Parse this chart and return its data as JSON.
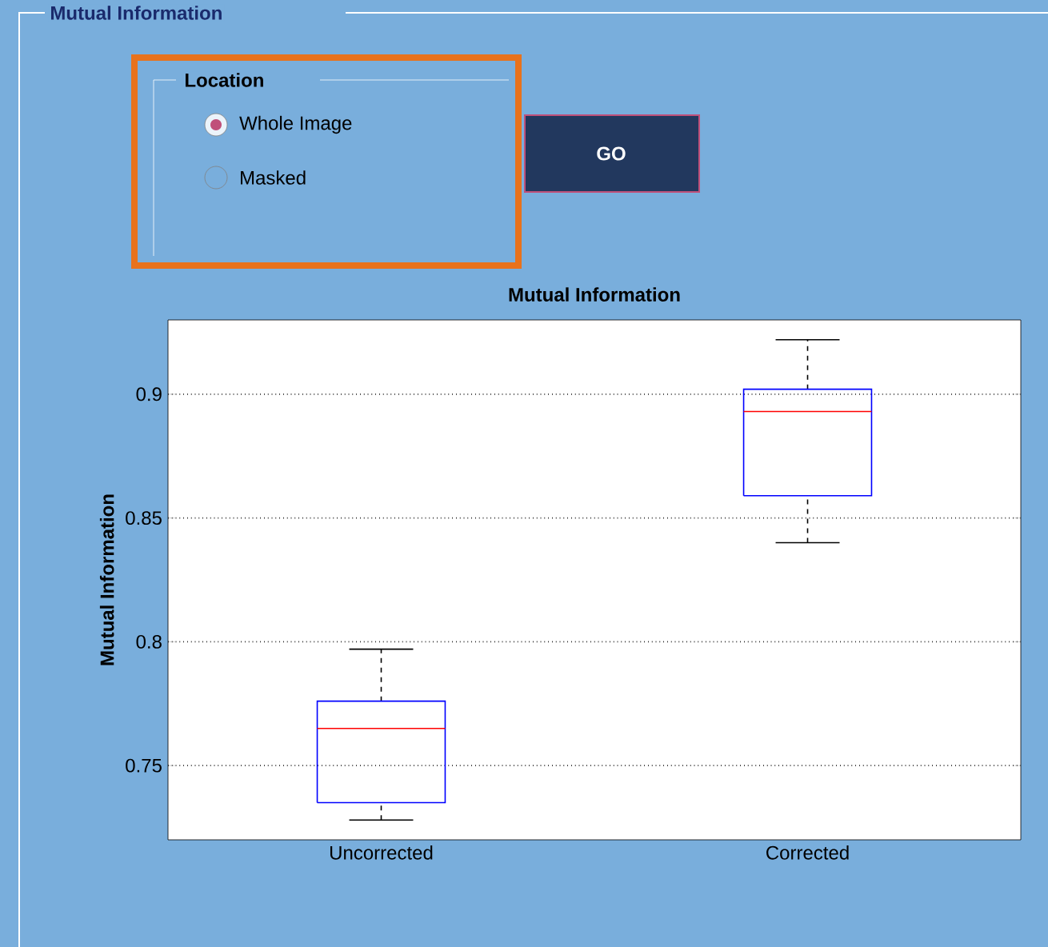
{
  "chart_data": {
    "type": "box",
    "title": "Mutual Information",
    "ylabel": "Mutual Information",
    "categories": [
      "Uncorrected",
      "Corrected"
    ],
    "boxes": [
      {
        "low": 0.728,
        "q1": 0.735,
        "median": 0.765,
        "q3": 0.776,
        "high": 0.797
      },
      {
        "low": 0.84,
        "q1": 0.859,
        "median": 0.893,
        "q3": 0.902,
        "high": 0.922
      }
    ],
    "ylim": [
      0.72,
      0.93
    ],
    "yticks": [
      0.75,
      0.8,
      0.85,
      0.9
    ],
    "grid": "y",
    "annotations": [
      "Mutual Information",
      "Location",
      "Whole Image",
      "Masked",
      "GO"
    ]
  }
}
